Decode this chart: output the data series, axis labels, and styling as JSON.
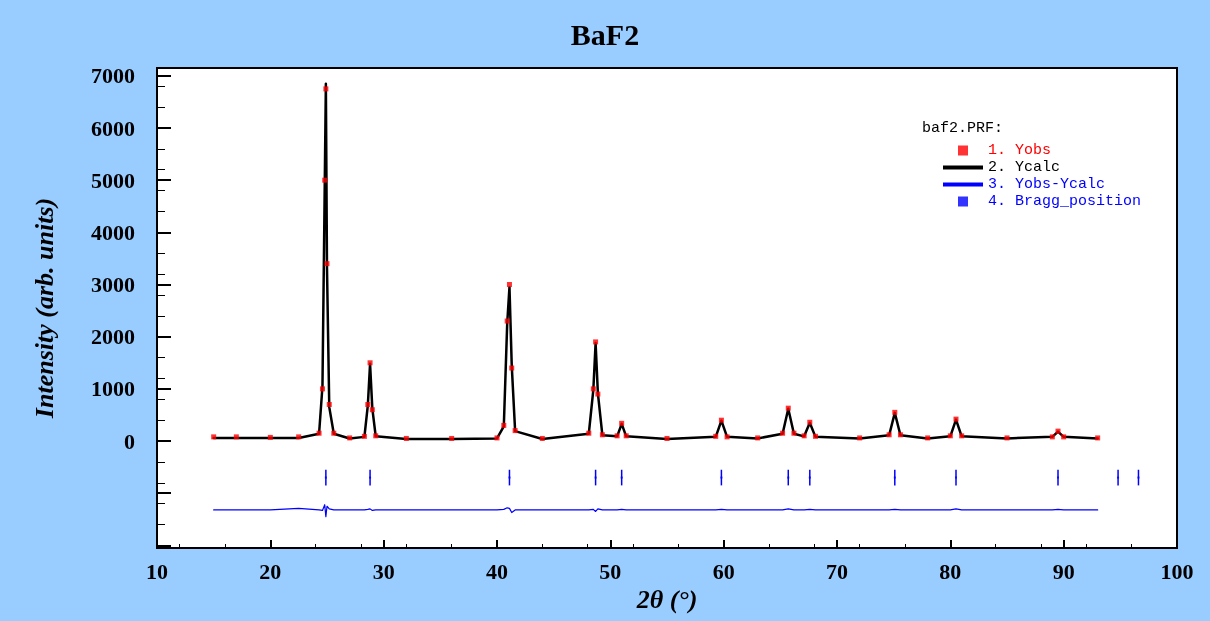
{
  "chart_data": {
    "type": "scatter",
    "title": "BaF2",
    "xlabel": "2θ (°)",
    "ylabel": "Intensity (arb. units)",
    "legend_title": "baf2.PRF:",
    "legend": "top right",
    "grid": false,
    "xlim": [
      10,
      100
    ],
    "xticks": [
      10,
      20,
      30,
      40,
      50,
      60,
      70,
      80,
      90,
      100
    ],
    "ylim": [
      -2050,
      7150
    ],
    "yticks": [
      {
        "value": -2000,
        "label": null
      },
      {
        "value": -1000,
        "label": null
      },
      0,
      1000,
      2000,
      3000,
      4000,
      5000,
      6000,
      7000
    ],
    "x": [
      15,
      17,
      20,
      22.5,
      24.3,
      24.6,
      24.8,
      24.9,
      25.0,
      25.2,
      25.6,
      27,
      28.3,
      28.6,
      28.8,
      29.0,
      29.3,
      32,
      36,
      40,
      40.6,
      40.9,
      41.1,
      41.3,
      41.6,
      44,
      48.1,
      48.5,
      48.7,
      48.9,
      49.3,
      50.6,
      51.0,
      51.4,
      55,
      59.3,
      59.8,
      60.3,
      63,
      65.2,
      65.7,
      66.2,
      67.1,
      67.6,
      68.1,
      72,
      74.6,
      75.1,
      75.6,
      78,
      80.0,
      80.5,
      81.0,
      85,
      89.0,
      89.5,
      90.0,
      93
    ],
    "series": [
      {
        "name": "1. Yobs",
        "marker": "square",
        "color": "#ff0000",
        "values": [
          80,
          80,
          70,
          80,
          150,
          1000,
          5000,
          6750,
          3400,
          700,
          150,
          60,
          90,
          700,
          1500,
          600,
          100,
          50,
          50,
          60,
          300,
          2300,
          3000,
          1400,
          200,
          50,
          150,
          1000,
          1900,
          900,
          120,
          100,
          340,
          100,
          50,
          90,
          400,
          80,
          60,
          150,
          630,
          150,
          100,
          360,
          90,
          60,
          120,
          550,
          120,
          60,
          100,
          420,
          100,
          60,
          80,
          190,
          80,
          60
        ]
      },
      {
        "name": "2. Ycalc",
        "type": "line",
        "marker": "none",
        "line_style": "solid",
        "color": "#000000",
        "values": [
          60,
          60,
          60,
          60,
          140,
          1050,
          4900,
          6850,
          3300,
          650,
          140,
          50,
          80,
          680,
          1480,
          620,
          90,
          40,
          40,
          50,
          280,
          2250,
          2950,
          1450,
          190,
          40,
          140,
          980,
          1880,
          920,
          110,
          90,
          330,
          90,
          40,
          80,
          390,
          80,
          50,
          140,
          620,
          140,
          90,
          350,
          80,
          50,
          110,
          540,
          110,
          50,
          90,
          410,
          90,
          50,
          80,
          180,
          80,
          50
        ]
      },
      {
        "name": "3. Yobs-Ycalc",
        "type": "line",
        "marker": "none",
        "line_style": "solid",
        "color": "#0000ff",
        "values": [
          -1320,
          -1320,
          -1320,
          -1290,
          -1320,
          -1330,
          -1220,
          -1450,
          -1250,
          -1300,
          -1320,
          -1320,
          -1320,
          -1310,
          -1300,
          -1330,
          -1320,
          -1320,
          -1320,
          -1320,
          -1310,
          -1280,
          -1290,
          -1370,
          -1320,
          -1320,
          -1320,
          -1310,
          -1350,
          -1300,
          -1320,
          -1320,
          -1310,
          -1320,
          -1320,
          -1320,
          -1310,
          -1320,
          -1320,
          -1320,
          -1300,
          -1320,
          -1320,
          -1310,
          -1320,
          -1320,
          -1320,
          -1310,
          -1320,
          -1320,
          -1320,
          -1300,
          -1320,
          -1320,
          -1320,
          -1310,
          -1320,
          -1320
        ]
      },
      {
        "name": "4. Bragg_position",
        "marker": "square",
        "errors": [
          150,
          150,
          150,
          150,
          150,
          150,
          150,
          150,
          150,
          150,
          150,
          150,
          150
        ],
        "color": "#0000ff",
        "x": [
          24.9,
          28.8,
          41.1,
          48.7,
          51.0,
          59.8,
          65.7,
          67.6,
          75.1,
          80.5,
          89.5,
          94.8,
          96.6
        ],
        "values": [
          -700,
          -700,
          -700,
          -700,
          -700,
          -700,
          -700,
          -700,
          -700,
          -700,
          -700,
          -700,
          -700
        ]
      }
    ]
  }
}
